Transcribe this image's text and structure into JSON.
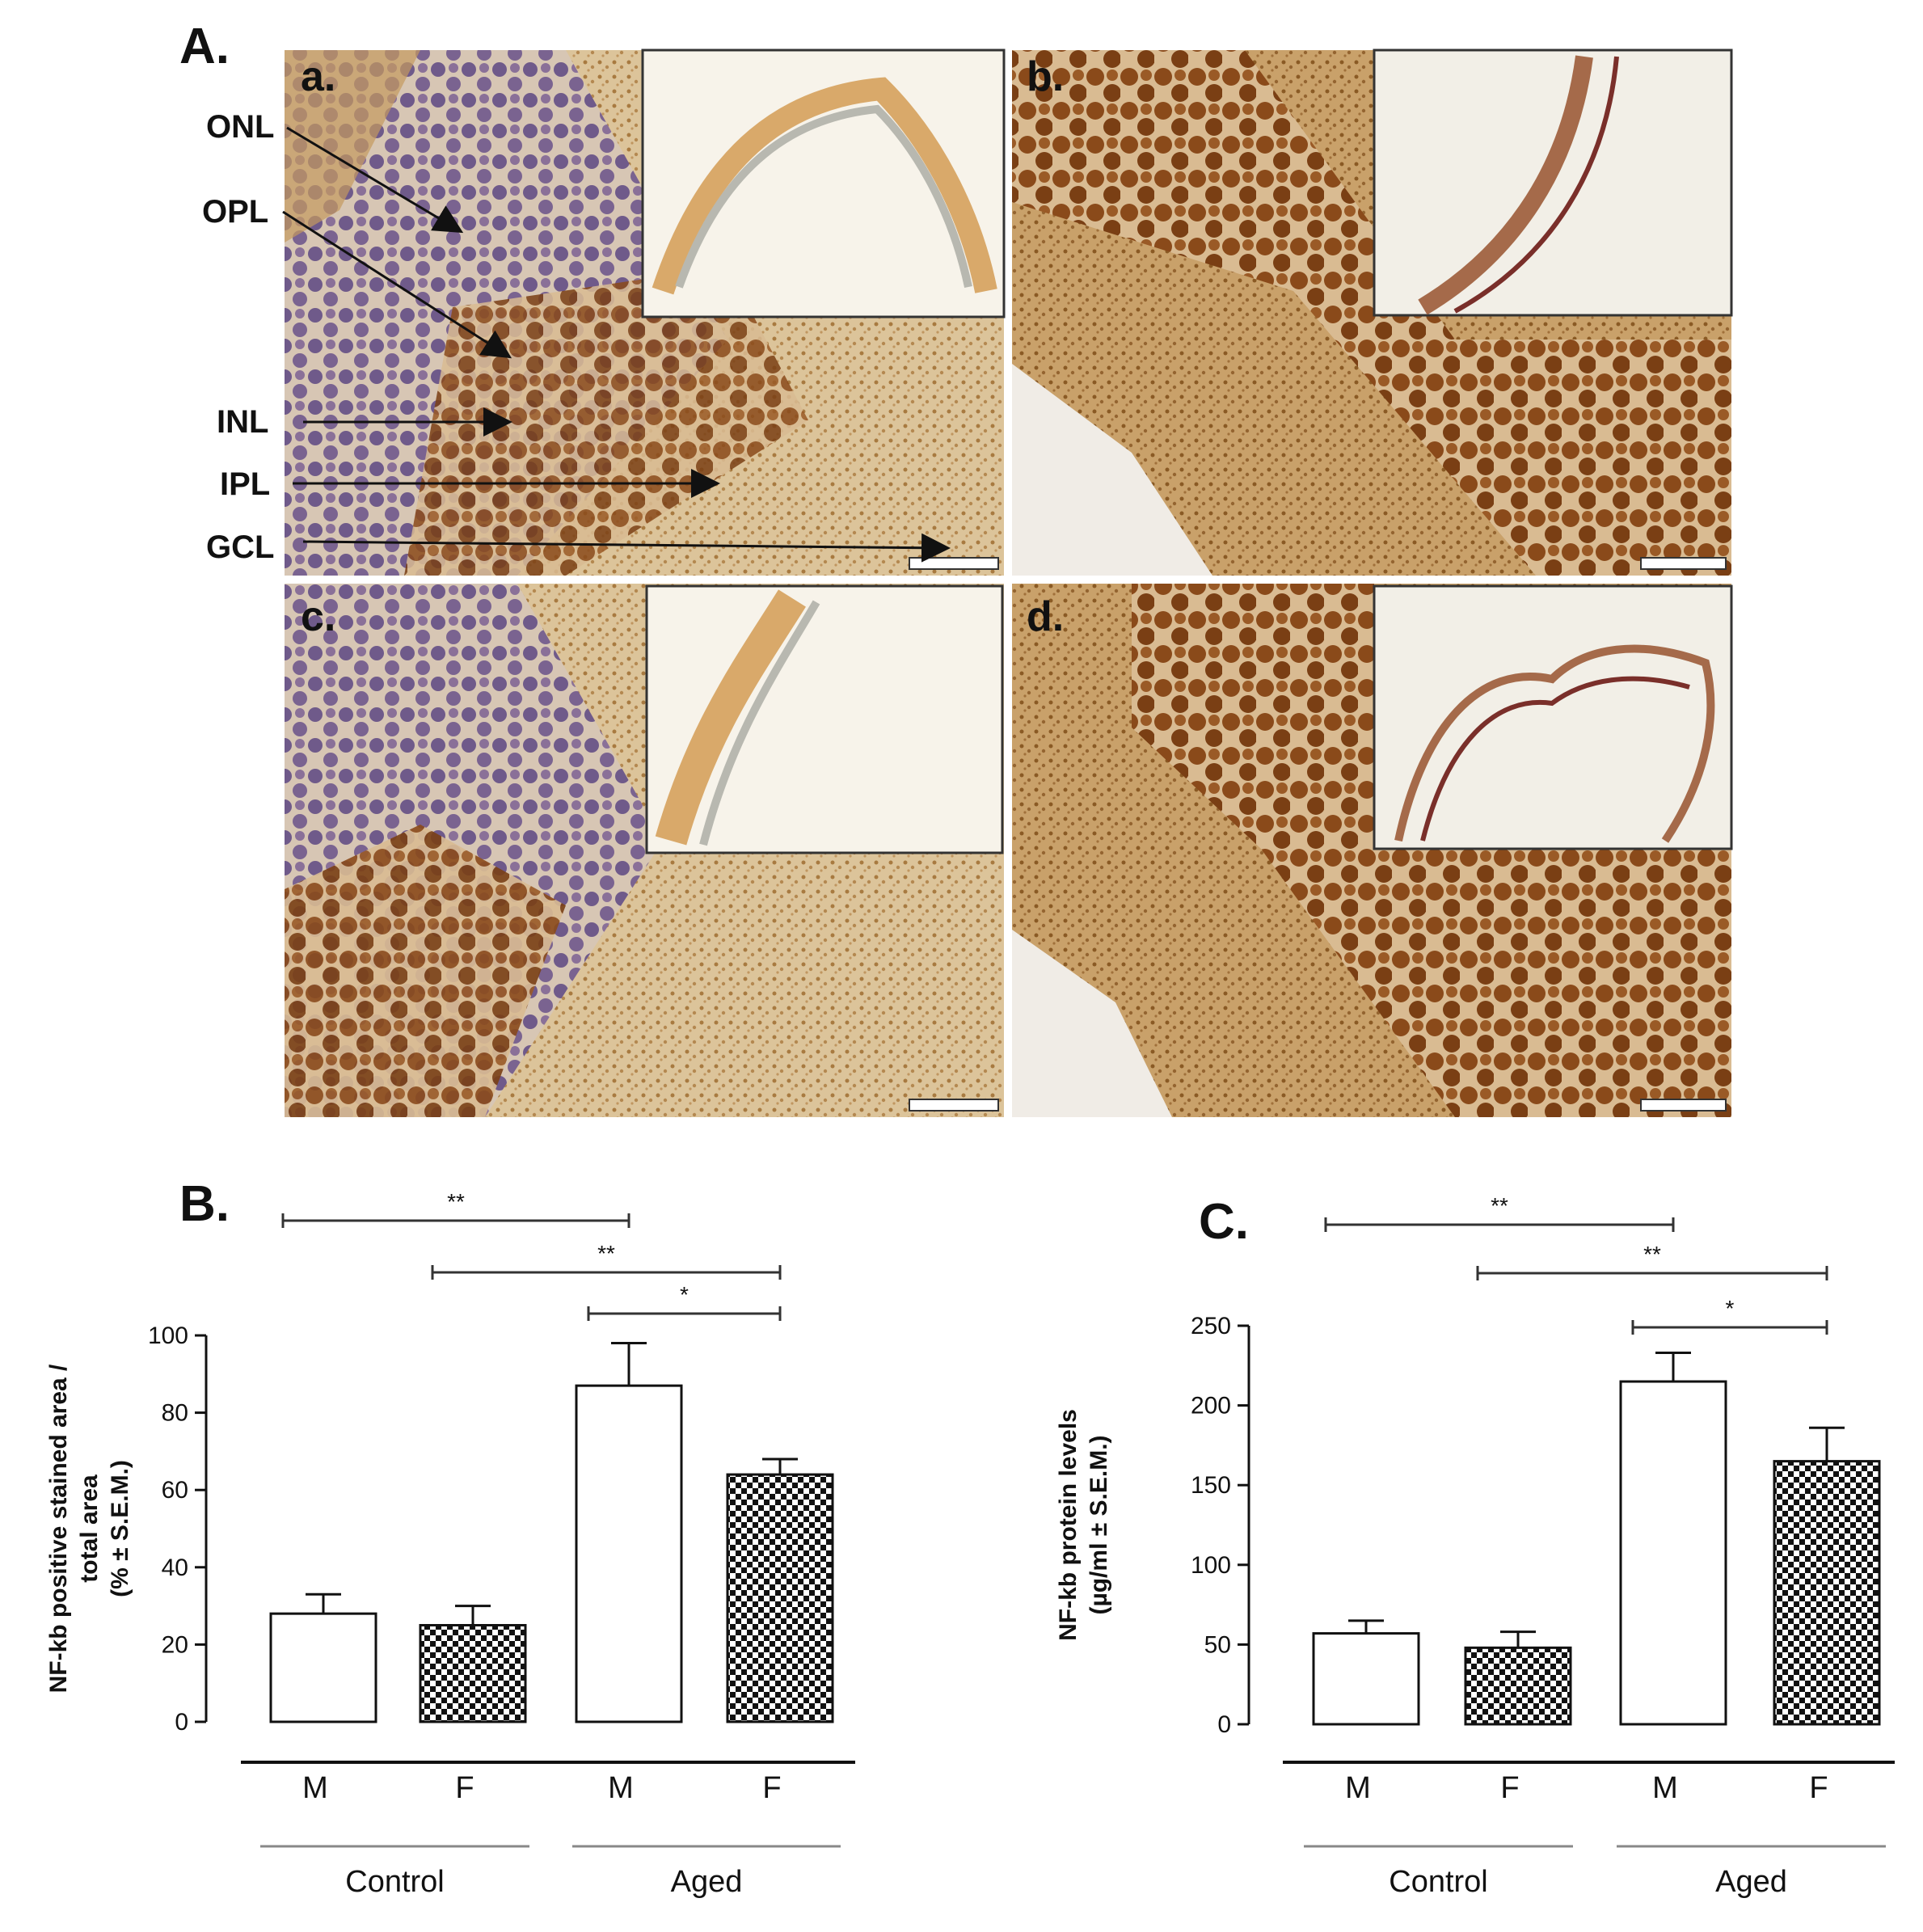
{
  "figure": {
    "panel_A_label": "A.",
    "micrographs": [
      {
        "label": "a.",
        "tone": "light"
      },
      {
        "label": "b.",
        "tone": "dark"
      },
      {
        "label": "c.",
        "tone": "light"
      },
      {
        "label": "d.",
        "tone": "dark"
      }
    ],
    "layer_labels": [
      "ONL",
      "OPL",
      "INL",
      "IPL",
      "GCL"
    ],
    "colors": {
      "stain_light": "#c99a5a",
      "stain_dark": "#8b4a1c",
      "nucleus_blue": "#6f5a8a",
      "nucleus_brown": "#8a4a1a",
      "inset_bg": "#f3efe6",
      "bar_hatch": "#111111"
    }
  },
  "chart_data": [
    {
      "panel": "B.",
      "type": "bar",
      "ylabel_lines": [
        "NF-kb positive stained area /",
        "total area",
        "(% ± S.E.M.)"
      ],
      "ylim": [
        0,
        100
      ],
      "yticks": [
        0,
        20,
        40,
        60,
        80,
        100
      ],
      "categories": [
        "M",
        "F",
        "M",
        "F"
      ],
      "groups": [
        "Control",
        "Aged"
      ],
      "values": [
        28,
        25,
        87,
        64
      ],
      "errors": [
        5,
        5,
        11,
        4
      ],
      "fills": [
        "open",
        "checker",
        "open",
        "checker"
      ],
      "comparisons": [
        {
          "from": 0,
          "to": 2,
          "label": "**"
        },
        {
          "from": 1,
          "to": 3,
          "label": "**"
        },
        {
          "from": 2,
          "to": 3,
          "label": "*"
        }
      ]
    },
    {
      "panel": "C.",
      "type": "bar",
      "ylabel_lines": [
        "NF-kb protein levels",
        "(µg/ml ± S.E.M.)"
      ],
      "ylim": [
        0,
        250
      ],
      "yticks": [
        0,
        50,
        100,
        150,
        200,
        250
      ],
      "categories": [
        "M",
        "F",
        "M",
        "F"
      ],
      "groups": [
        "Control",
        "Aged"
      ],
      "values": [
        57,
        48,
        215,
        165
      ],
      "errors": [
        8,
        10,
        18,
        21
      ],
      "fills": [
        "open",
        "checker",
        "open",
        "checker"
      ],
      "comparisons": [
        {
          "from": 0,
          "to": 2,
          "label": "**"
        },
        {
          "from": 1,
          "to": 3,
          "label": "**"
        },
        {
          "from": 2,
          "to": 3,
          "label": "*"
        }
      ]
    }
  ]
}
